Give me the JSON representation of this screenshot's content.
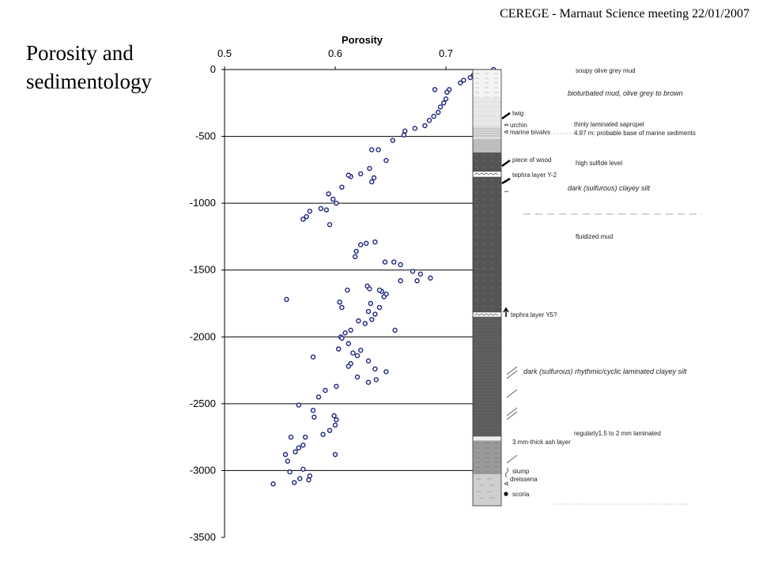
{
  "slide": {
    "header": "CEREGE - Marnaut Science meeting 22/01/2007",
    "title_line1": "Porosity and",
    "title_line2": "sedimentology"
  },
  "chart_data": {
    "type": "scatter",
    "title": "",
    "xlabel": "Porosity",
    "ylabel": "",
    "xlim": [
      0.5,
      0.75
    ],
    "ylim": [
      -3500,
      0
    ],
    "xticks": [
      0.5,
      0.6,
      0.7
    ],
    "xtick_labels": [
      "0.5",
      "0.6",
      "0.7"
    ],
    "yticks": [
      0,
      -500,
      -1000,
      -1500,
      -2000,
      -2500,
      -3000,
      -3500
    ],
    "ytick_labels": [
      "0",
      "-500",
      "-1000",
      "-1500",
      "-2000",
      "-2500",
      "-3000",
      "-3500"
    ],
    "grid": "horizontal",
    "marker_color": "#1a237e",
    "series": [
      {
        "x": [
          0.743,
          0.731,
          0.725,
          0.722,
          0.716,
          0.713,
          0.703,
          0.701,
          0.7,
          0.698,
          0.695,
          0.693,
          0.69,
          0.689,
          0.685,
          0.681,
          0.672,
          0.663,
          0.662,
          0.652,
          0.646,
          0.639,
          0.633,
          0.631,
          0.623,
          0.614,
          0.612,
          0.606,
          0.635,
          0.633,
          0.587,
          0.594,
          0.598,
          0.601,
          0.592,
          0.577,
          0.574,
          0.571,
          0.595
        ],
        "y": [
          0,
          -20,
          -40,
          -60,
          -80,
          -100,
          -150,
          -170,
          -220,
          -250,
          -280,
          -320,
          -150,
          -350,
          -380,
          -420,
          -440,
          -460,
          -490,
          -530,
          -680,
          -600,
          -600,
          -740,
          -780,
          -800,
          -790,
          -880,
          -810,
          -840,
          -1040,
          -930,
          -970,
          -1000,
          -1050,
          -1060,
          -1100,
          -1120,
          -1160
        ]
      },
      {
        "x": [
          0.636,
          0.628,
          0.623,
          0.619,
          0.618,
          0.645,
          0.653,
          0.659,
          0.67,
          0.677,
          0.686,
          0.674,
          0.659,
          0.629,
          0.642,
          0.646,
          0.644,
          0.632,
          0.64,
          0.636,
          0.633,
          0.621,
          0.627,
          0.614,
          0.609,
          0.605,
          0.606,
          0.612,
          0.603,
          0.616,
          0.63,
          0.614,
          0.612,
          0.636,
          0.646,
          0.62,
          0.637,
          0.63,
          0.601,
          0.591,
          0.585,
          0.567,
          0.58,
          0.599,
          0.601,
          0.6,
          0.595,
          0.589,
          0.573,
          0.571,
          0.567,
          0.564,
          0.555,
          0.557,
          0.571,
          0.577,
          0.576,
          0.568,
          0.563,
          0.544,
          0.559
        ],
        "y": [
          -1290,
          -1300,
          -1310,
          -1360,
          -1400,
          -1440,
          -1440,
          -1460,
          -1510,
          -1530,
          -1560,
          -1580,
          -1580,
          -1620,
          -1660,
          -1680,
          -1700,
          -1750,
          -1780,
          -1830,
          -1870,
          -1880,
          -1900,
          -1950,
          -1970,
          -2000,
          -2010,
          -2050,
          -2090,
          -2120,
          -2180,
          -2200,
          -2220,
          -2240,
          -2260,
          -2300,
          -2320,
          -2340,
          -2370,
          -2400,
          -2450,
          -2510,
          -2550,
          -2590,
          -2620,
          -2660,
          -2700,
          -2730,
          -2750,
          -2810,
          -2830,
          -2860,
          -2880,
          -2930,
          -2990,
          -3040,
          -3070,
          -3060,
          -3090,
          -3100,
          -3010
        ]
      },
      {
        "x": [
          0.604,
          0.611,
          0.631,
          0.64,
          0.654,
          0.606,
          0.63,
          0.623,
          0.62,
          0.58,
          0.556,
          0.56,
          0.581,
          0.6
        ],
        "y": [
          -1740,
          -1650,
          -1640,
          -1650,
          -1950,
          -1780,
          -1810,
          -2100,
          -2140,
          -2150,
          -1720,
          -2750,
          -2600,
          -2880
        ]
      }
    ]
  },
  "lithology": {
    "column_annotations": [
      {
        "label": "twig",
        "style": "normal"
      },
      {
        "label": "urchin",
        "style": "normal"
      },
      {
        "label": "marine bivalvs",
        "style": "normal"
      },
      {
        "label": "piece of wood",
        "style": "normal"
      },
      {
        "label": "tephra layer Y-2",
        "style": "normal"
      },
      {
        "label": "tephra layer Y5?",
        "style": "normal"
      },
      {
        "label": "3 mm-thick ash layer",
        "style": "normal"
      },
      {
        "label": "slump",
        "style": "normal"
      },
      {
        "label": "dreissena",
        "style": "normal"
      },
      {
        "label": "scoria",
        "style": "normal"
      }
    ],
    "facies_labels": [
      {
        "label": "soupy olive grey mud",
        "style": "normal"
      },
      {
        "label": "bioturbated mud, olive grey to brown",
        "style": "italic"
      },
      {
        "label": "thinly laminated sapropel",
        "style": "normal"
      },
      {
        "label": "4.97 m: probable base of marine sediments",
        "style": "normal"
      },
      {
        "label": "high sulfide level",
        "style": "normal"
      },
      {
        "label": "dark (sulfurous) clayey silt",
        "style": "italic"
      },
      {
        "label": "fluidized mud",
        "style": "normal"
      },
      {
        "label": "dark (sulfurous) rhythmic/cyclic laminated clayey silt",
        "style": "italic"
      },
      {
        "label": "regularly1.5 to 2 mm laminated",
        "style": "normal"
      }
    ]
  }
}
